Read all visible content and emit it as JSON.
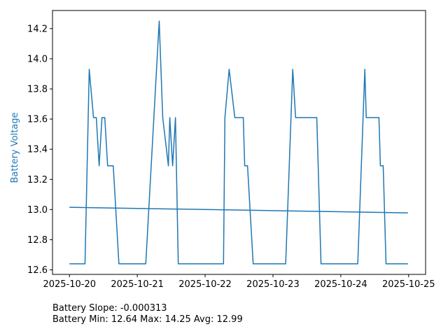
{
  "chart_data": {
    "type": "line",
    "title": "",
    "xlabel": "",
    "ylabel": "Battery Voltage",
    "x_ticks": [
      "2025-10-20",
      "2025-10-21",
      "2025-10-22",
      "2025-10-23",
      "2025-10-24",
      "2025-10-25"
    ],
    "y_ticks": [
      "12.6",
      "12.8",
      "13.0",
      "13.2",
      "13.4",
      "13.6",
      "13.8",
      "14.0",
      "14.2"
    ],
    "xlim": [
      "2025-10-19T18:00",
      "2025-10-25T06:00"
    ],
    "ylim": [
      12.57,
      14.32
    ],
    "grid": false,
    "legend": "none",
    "series": [
      {
        "color": "#1f77b4",
        "x": [
          "2025-10-20T00:00",
          "2025-10-20T05:30",
          "2025-10-20T07:00",
          "2025-10-20T08:30",
          "2025-10-20T09:30",
          "2025-10-20T10:30",
          "2025-10-20T11:30",
          "2025-10-20T12:30",
          "2025-10-20T13:30",
          "2025-10-20T15:30",
          "2025-10-20T17:30",
          "2025-10-21T03:00",
          "2025-10-21T07:45",
          "2025-10-21T09:00",
          "2025-10-21T11:00",
          "2025-10-21T11:30",
          "2025-10-21T12:30",
          "2025-10-21T13:30",
          "2025-10-21T14:30",
          "2025-10-21T17:30",
          "2025-10-22T06:30",
          "2025-10-22T07:00",
          "2025-10-22T08:30",
          "2025-10-22T10:30",
          "2025-10-22T13:30",
          "2025-10-22T14:00",
          "2025-10-22T15:00",
          "2025-10-22T17:00",
          "2025-10-23T04:30",
          "2025-10-23T07:00",
          "2025-10-23T08:00",
          "2025-10-23T15:30",
          "2025-10-23T17:00",
          "2025-10-24T06:00",
          "2025-10-24T08:30",
          "2025-10-24T09:00",
          "2025-10-24T13:30",
          "2025-10-24T14:00",
          "2025-10-24T15:00",
          "2025-10-24T16:00",
          "2025-10-24T23:45"
        ],
        "values": [
          12.64,
          12.64,
          13.93,
          13.61,
          13.61,
          13.29,
          13.61,
          13.61,
          13.29,
          13.29,
          12.64,
          12.64,
          14.25,
          13.61,
          13.29,
          13.61,
          13.29,
          13.61,
          12.64,
          12.64,
          12.64,
          13.61,
          13.93,
          13.61,
          13.61,
          13.29,
          13.29,
          12.64,
          12.64,
          13.93,
          13.61,
          13.61,
          12.64,
          12.64,
          13.93,
          13.61,
          13.61,
          13.29,
          13.29,
          12.64,
          12.64
        ]
      },
      {
        "color": "#1f77b4",
        "x": [
          "2025-10-20T00:00",
          "2025-10-24T23:45"
        ],
        "values": [
          13.015,
          12.978
        ]
      }
    ]
  },
  "stats": {
    "slope_line": "Battery Slope: -0.000313",
    "range_line": "Battery Min: 12.64 Max: 14.25 Avg: 12.99"
  }
}
